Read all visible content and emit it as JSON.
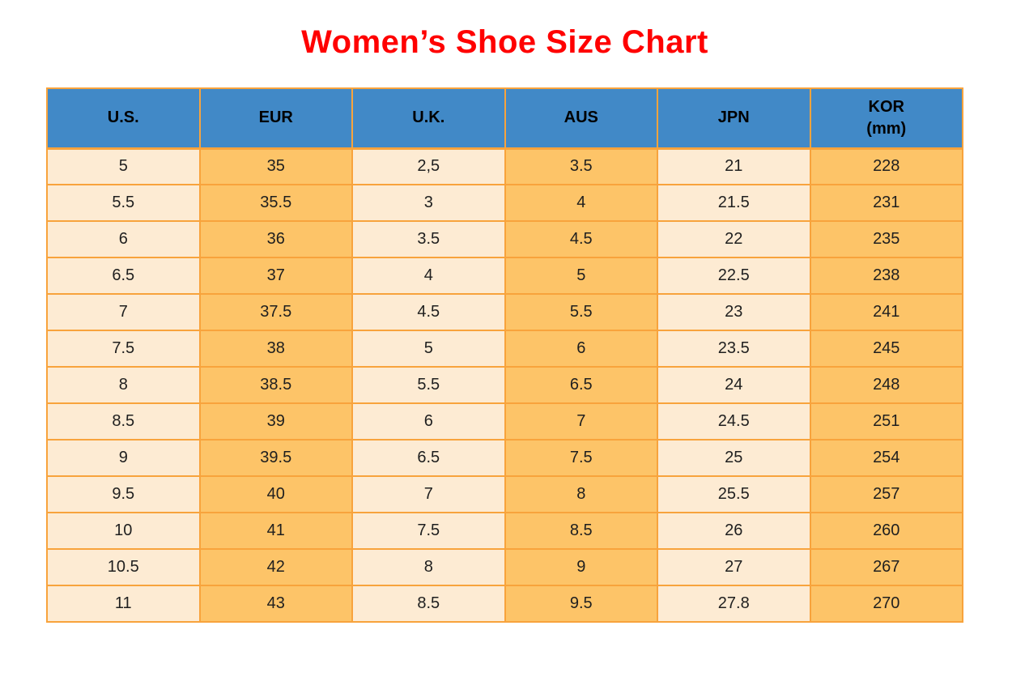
{
  "title": "Women’s Shoe Size Chart",
  "colors": {
    "title": "#FF0000",
    "header-bg": "#4189C7",
    "header-text": "#000000",
    "cell-cream": "#FDEBD3",
    "cell-orange": "#FDC468",
    "grid": "#F8A33C",
    "cell-text": "#1F1F1F",
    "page-bg": "#FFFFFF"
  },
  "chart_data": {
    "type": "table",
    "title": "Women’s Shoe Size Chart",
    "columns": [
      {
        "label": "U.S.",
        "sublabel": ""
      },
      {
        "label": "EUR",
        "sublabel": ""
      },
      {
        "label": "U.K.",
        "sublabel": ""
      },
      {
        "label": "AUS",
        "sublabel": ""
      },
      {
        "label": "JPN",
        "sublabel": ""
      },
      {
        "label": "KOR",
        "sublabel": "(mm)"
      }
    ],
    "rows": [
      [
        "5",
        "35",
        "2,5",
        "3.5",
        "21",
        "228"
      ],
      [
        "5.5",
        "35.5",
        "3",
        "4",
        "21.5",
        "231"
      ],
      [
        "6",
        "36",
        "3.5",
        "4.5",
        "22",
        "235"
      ],
      [
        "6.5",
        "37",
        "4",
        "5",
        "22.5",
        "238"
      ],
      [
        "7",
        "37.5",
        "4.5",
        "5.5",
        "23",
        "241"
      ],
      [
        "7.5",
        "38",
        "5",
        "6",
        "23.5",
        "245"
      ],
      [
        "8",
        "38.5",
        "5.5",
        "6.5",
        "24",
        "248"
      ],
      [
        "8.5",
        "39",
        "6",
        "7",
        "24.5",
        "251"
      ],
      [
        "9",
        "39.5",
        "6.5",
        "7.5",
        "25",
        "254"
      ],
      [
        "9.5",
        "40",
        "7",
        "8",
        "25.5",
        "257"
      ],
      [
        "10",
        "41",
        "7.5",
        "8.5",
        "26",
        "260"
      ],
      [
        "10.5",
        "42",
        "8",
        "9",
        "27",
        "267"
      ],
      [
        "11",
        "43",
        "8.5",
        "9.5",
        "27.8",
        "270"
      ]
    ]
  }
}
